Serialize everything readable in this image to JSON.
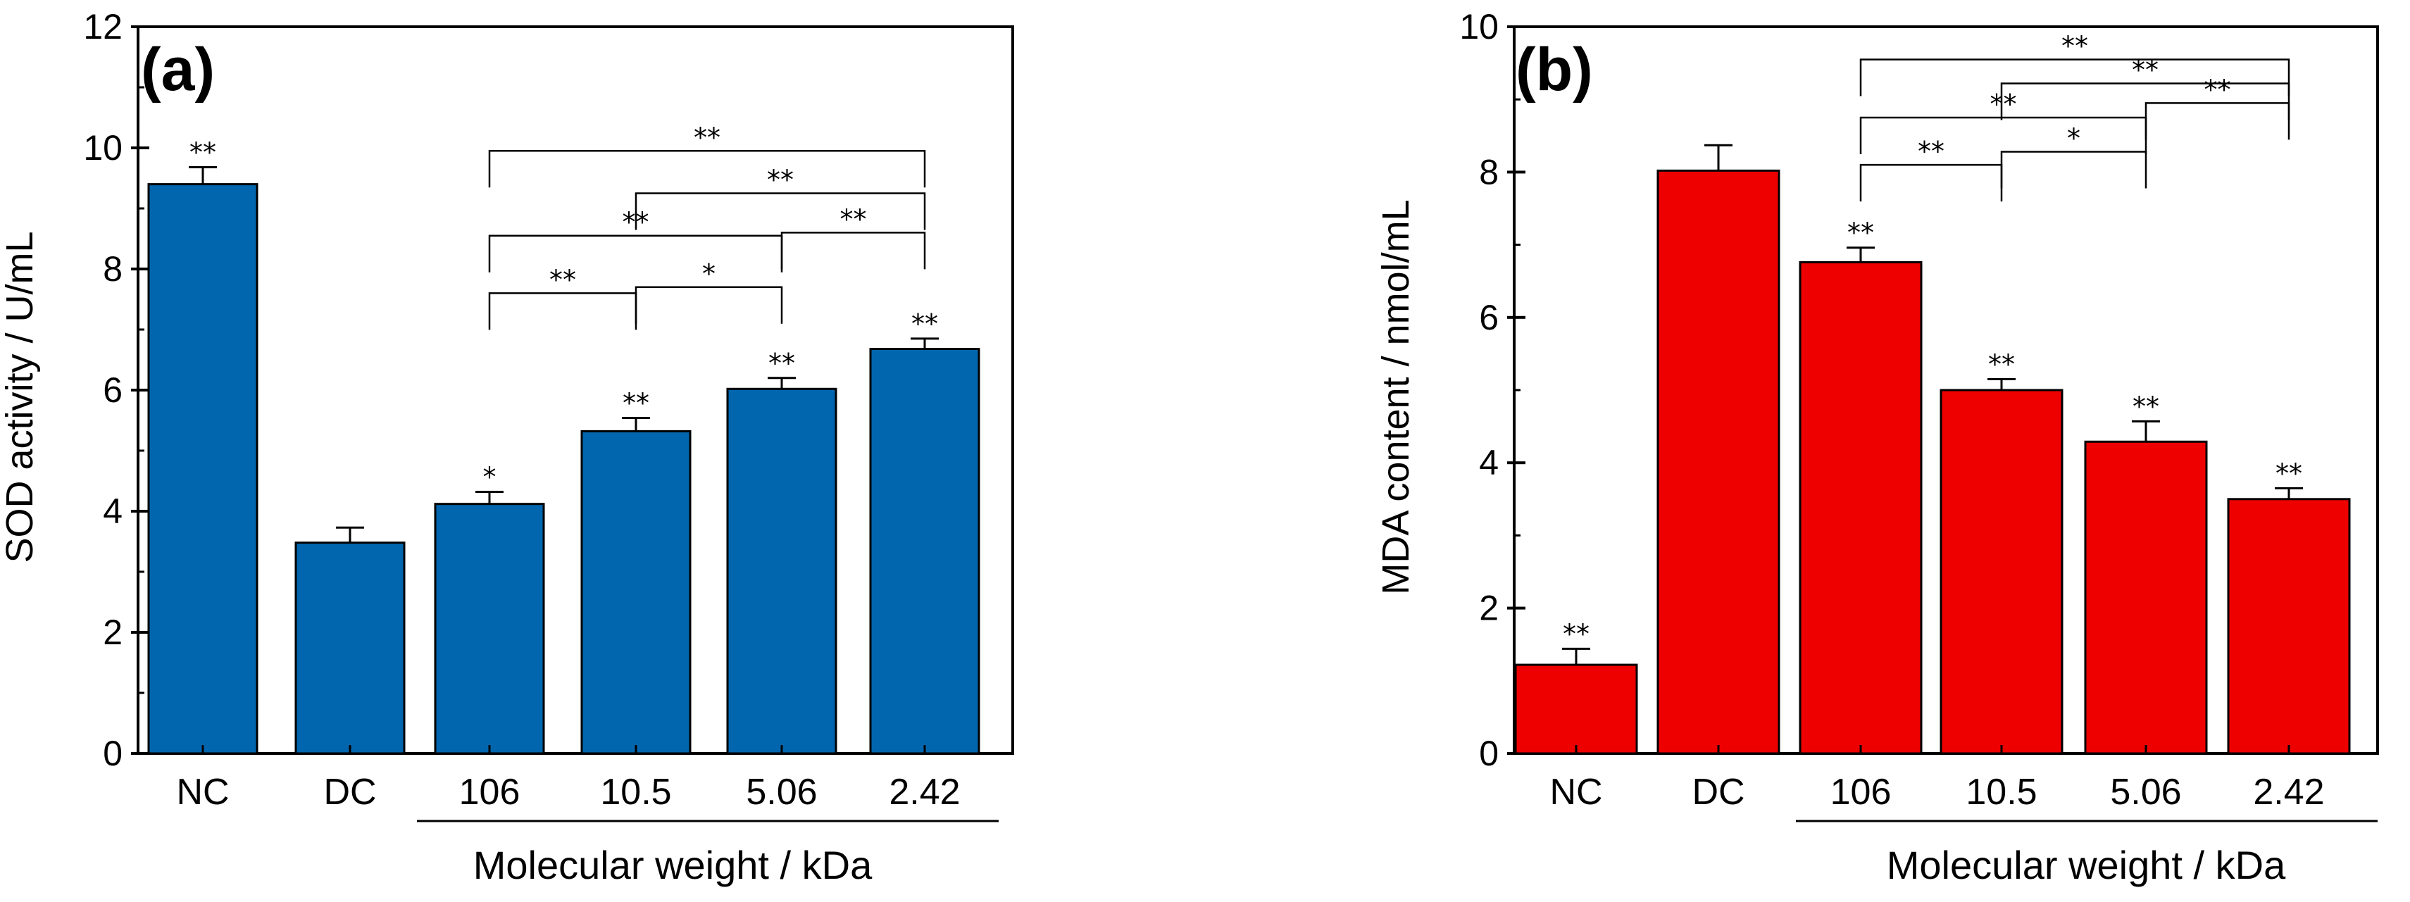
{
  "chart_data": [
    {
      "type": "bar",
      "panel_label": "(a)",
      "color": "#0266AE",
      "categories": [
        "NC",
        "DC",
        "106",
        "10.5",
        "5.06",
        "2.42"
      ],
      "values": [
        9.4,
        3.48,
        4.12,
        5.32,
        6.02,
        6.68
      ],
      "errors": [
        0.28,
        0.25,
        0.2,
        0.22,
        0.18,
        0.17
      ],
      "bar_significance": [
        "**",
        "",
        "*",
        "**",
        "**",
        "**"
      ],
      "ylabel": "SOD activity / U/mL",
      "xlabel": "Molecular weight / kDa",
      "ylim": [
        0,
        12
      ],
      "yticks": [
        0,
        2,
        4,
        6,
        8,
        10,
        12
      ],
      "comparisons": [
        {
          "from": "106",
          "to": "10.5",
          "label": "**",
          "y": 7.6
        },
        {
          "from": "10.5",
          "to": "5.06",
          "label": "*",
          "y": 7.7
        },
        {
          "from": "106",
          "to": "5.06",
          "label": "**",
          "y": 8.55
        },
        {
          "from": "5.06",
          "to": "2.42",
          "label": "**",
          "y": 8.6
        },
        {
          "from": "10.5",
          "to": "2.42",
          "label": "**",
          "y": 9.25
        },
        {
          "from": "106",
          "to": "2.42",
          "label": "**",
          "y": 9.95
        }
      ]
    },
    {
      "type": "bar",
      "panel_label": "(b)",
      "color": "#EE0000",
      "categories": [
        "NC",
        "DC",
        "106",
        "10.5",
        "5.06",
        "2.42"
      ],
      "values": [
        1.22,
        8.02,
        6.76,
        5.0,
        4.29,
        3.5
      ],
      "errors": [
        0.22,
        0.35,
        0.2,
        0.15,
        0.28,
        0.15
      ],
      "bar_significance": [
        "**",
        "",
        "**",
        "**",
        "**",
        "**"
      ],
      "ylabel": "MDA content / nmol/mL",
      "xlabel": "Molecular weight / kDa",
      "ylim": [
        0,
        10
      ],
      "yticks": [
        0,
        2,
        4,
        6,
        8,
        10
      ],
      "comparisons": [
        {
          "from": "106",
          "to": "10.5",
          "label": "**",
          "y": 8.1
        },
        {
          "from": "10.5",
          "to": "5.06",
          "label": "*",
          "y": 8.28
        },
        {
          "from": "106",
          "to": "5.06",
          "label": "**",
          "y": 8.75
        },
        {
          "from": "5.06",
          "to": "2.42",
          "label": "**",
          "y": 8.95
        },
        {
          "from": "10.5",
          "to": "2.42",
          "label": "**",
          "y": 9.22
        },
        {
          "from": "106",
          "to": "2.42",
          "label": "**",
          "y": 9.55
        }
      ]
    }
  ]
}
